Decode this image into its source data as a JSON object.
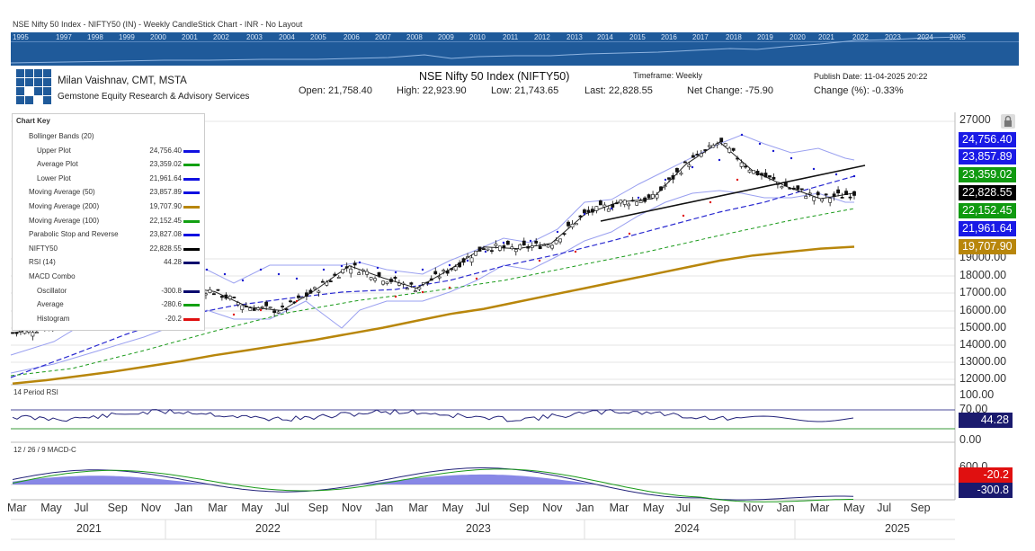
{
  "page_title": "NSE Nifty 50 Index - NIFTY50 (IN) - Weekly CandleStick Chart - INR - No Layout",
  "overview_years": [
    "1995",
    "1997",
    "1998",
    "1999",
    "2000",
    "2001",
    "2002",
    "2003",
    "2004",
    "2005",
    "2006",
    "2007",
    "2008",
    "2009",
    "2010",
    "2011",
    "2012",
    "2013",
    "2014",
    "2015",
    "2016",
    "2017",
    "2018",
    "2019",
    "2020",
    "2021",
    "2022",
    "2023",
    "2024",
    "2025"
  ],
  "header": {
    "author": "Milan Vaishnav, CMT, MSTA",
    "firm": "Gemstone Equity Research & Advisory Services",
    "title": "NSE Nifty 50 Index (NIFTY50)",
    "timeframe": "Timeframe: Weekly",
    "publish": "Publish Date: 11-04-2025 20:22",
    "open": "Open: 21,758.40",
    "high": "High: 22,923.90",
    "low": "Low: 21,743.65",
    "last": "Last: 22,828.55",
    "net_change": "Net Change: -75.90",
    "change_pct": "Change (%): -0.33%"
  },
  "chart_key": {
    "title": "Chart Key",
    "rows": [
      {
        "label": "Bollinger Bands (20)",
        "value": "",
        "indent": false,
        "color": ""
      },
      {
        "label": "Upper Plot",
        "value": "24,756.40",
        "indent": true,
        "color": "#1010e0"
      },
      {
        "label": "Average Plot",
        "value": "23,359.02",
        "indent": true,
        "color": "#12a012"
      },
      {
        "label": "Lower Plot",
        "value": "21,961.64",
        "indent": true,
        "color": "#1010e0"
      },
      {
        "label": "Moving Average (50)",
        "value": "23,857.89",
        "indent": false,
        "color": "#1010e0"
      },
      {
        "label": "Moving Average (200)",
        "value": "19,707.90",
        "indent": false,
        "color": "#b8860b"
      },
      {
        "label": "Moving Average (100)",
        "value": "22,152.45",
        "indent": false,
        "color": "#12a012"
      },
      {
        "label": "Parabolic Stop and Reverse",
        "value": "23,827.08",
        "indent": false,
        "color": "#1010e0"
      },
      {
        "label": "NIFTY50",
        "value": "22,828.55",
        "indent": false,
        "color": "#000000"
      },
      {
        "label": "RSI (14)",
        "value": "44.28",
        "indent": false,
        "color": "#0a0a6e"
      },
      {
        "label": "MACD Combo",
        "value": "",
        "indent": false,
        "color": ""
      },
      {
        "label": "Oscillator",
        "value": "-300.8",
        "indent": true,
        "color": "#0a0a6e"
      },
      {
        "label": "Average",
        "value": "-280.6",
        "indent": true,
        "color": "#12a012"
      },
      {
        "label": "Histogram",
        "value": "-20.2",
        "indent": true,
        "color": "#e01010"
      }
    ]
  },
  "right_badges": [
    {
      "text": "24,756.40",
      "color": "#1a1ae6"
    },
    {
      "text": "23,857.89",
      "color": "#1a1ae6"
    },
    {
      "text": "23,359.02",
      "color": "#109a10"
    },
    {
      "text": "22,828.55",
      "color": "#000000"
    },
    {
      "text": "22,152.45",
      "color": "#109a10"
    },
    {
      "text": "21,961.64",
      "color": "#1a1ae6"
    },
    {
      "text": "19,707.90",
      "color": "#b8860b"
    }
  ],
  "price_ticks": [
    "27000",
    "19000.00",
    "18000.00",
    "17000.00",
    "16000.00",
    "15000.00",
    "14000.00",
    "13000.00",
    "12000.00"
  ],
  "rsi_panel": {
    "label": "14 Period RSI",
    "ticks": [
      "100.00",
      "70.00",
      "0.00"
    ],
    "badge": "44.28"
  },
  "macd_panel": {
    "label": "12 / 26 / 9 MACD-C",
    "ticks": [
      "600.0"
    ],
    "badge_hist": "-20.2",
    "badge_osc": "-300.8"
  },
  "x_months": [
    "Mar",
    "May",
    "Jul",
    "Sep",
    "Nov",
    "Jan",
    "Mar",
    "May",
    "Jul",
    "Sep",
    "Nov",
    "Jan",
    "Mar",
    "May",
    "Jul",
    "Sep",
    "Nov",
    "Jan",
    "Mar",
    "May",
    "Jul",
    "Sep",
    "Nov",
    "Jan",
    "Mar",
    "May",
    "Jul",
    "Sep"
  ],
  "x_years": [
    "2021",
    "2022",
    "2023",
    "2024",
    "2025"
  ],
  "chart_data": {
    "type": "line",
    "title": "NSE Nifty 50 Index (NIFTY50)",
    "ylim": [
      11500,
      27500
    ],
    "x": [
      "2021-03",
      "2021-05",
      "2021-07",
      "2021-09",
      "2021-11",
      "2022-01",
      "2022-03",
      "2022-05",
      "2022-07",
      "2022-09",
      "2022-11",
      "2023-01",
      "2023-03",
      "2023-05",
      "2023-07",
      "2023-09",
      "2023-11",
      "2024-01",
      "2024-03",
      "2024-05",
      "2024-07",
      "2024-09",
      "2024-11",
      "2025-01",
      "2025-03",
      "2025-04"
    ],
    "series": [
      {
        "name": "NIFTY50",
        "color": "#000000",
        "values": [
          14700,
          15000,
          15700,
          17600,
          17800,
          17400,
          17100,
          16200,
          16000,
          17200,
          18600,
          17900,
          17300,
          18400,
          19700,
          19600,
          19900,
          21600,
          22300,
          22500,
          24500,
          25800,
          24100,
          23200,
          22500,
          22828
        ]
      },
      {
        "name": "Moving Average (200)",
        "color": "#b8860b",
        "values": [
          11750,
          11950,
          12200,
          12450,
          12750,
          13050,
          13400,
          13700,
          14000,
          14300,
          14650,
          15000,
          15400,
          15800,
          16100,
          16500,
          16900,
          17300,
          17700,
          18100,
          18500,
          18900,
          19200,
          19400,
          19600,
          19708
        ]
      }
    ]
  }
}
